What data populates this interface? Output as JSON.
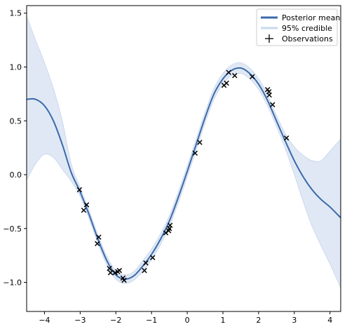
{
  "chart_data": {
    "type": "line",
    "xlim": [
      -4.5,
      4.3
    ],
    "ylim": [
      -1.27,
      1.57
    ],
    "x_ticks": [
      -4,
      -3,
      -2,
      -1,
      0,
      1,
      2,
      3,
      4
    ],
    "x_tick_labels": [
      "−4",
      "−3",
      "−2",
      "−1",
      "0",
      "1",
      "2",
      "3",
      "4"
    ],
    "y_ticks": [
      -1.0,
      -0.5,
      0.0,
      0.5,
      1.0,
      1.5
    ],
    "y_tick_labels": [
      "−1.0",
      "−0.5",
      "0.0",
      "0.5",
      "1.0",
      "1.5"
    ],
    "grid": false,
    "legend": {
      "position": "top-right",
      "entries": [
        "Posterior mean",
        "95% credible",
        "Observations"
      ]
    },
    "colors": {
      "mean": "#3a6aaa",
      "band": "#dbe4f3",
      "band_legend": "#c9d8ee",
      "observations": "#000000"
    },
    "series": [
      {
        "name": "Posterior mean",
        "x": [
          -4.5,
          -4.25,
          -4.0,
          -3.75,
          -3.5,
          -3.25,
          -3.0,
          -2.75,
          -2.5,
          -2.25,
          -2.0,
          -1.75,
          -1.5,
          -1.25,
          -1.0,
          -0.75,
          -0.5,
          -0.25,
          0.0,
          0.25,
          0.5,
          0.75,
          1.0,
          1.25,
          1.5,
          1.75,
          2.0,
          2.25,
          2.5,
          2.75,
          3.0,
          3.25,
          3.5,
          3.75,
          4.0,
          4.3
        ],
        "y": [
          0.7,
          0.7,
          0.64,
          0.5,
          0.28,
          0.02,
          -0.16,
          -0.37,
          -0.6,
          -0.8,
          -0.93,
          -0.97,
          -0.94,
          -0.85,
          -0.74,
          -0.6,
          -0.43,
          -0.21,
          0.03,
          0.28,
          0.53,
          0.75,
          0.89,
          0.97,
          0.99,
          0.94,
          0.84,
          0.69,
          0.5,
          0.31,
          0.13,
          -0.02,
          -0.14,
          -0.23,
          -0.3,
          -0.4
        ]
      },
      {
        "name": "95% credible",
        "x": [
          -4.5,
          -4.25,
          -4.0,
          -3.75,
          -3.5,
          -3.25,
          -3.0,
          -2.75,
          -2.5,
          -2.25,
          -2.0,
          -1.75,
          -1.5,
          -1.25,
          -1.0,
          -0.75,
          -0.5,
          -0.25,
          0.0,
          0.25,
          0.5,
          0.75,
          1.0,
          1.25,
          1.5,
          1.75,
          2.0,
          2.25,
          2.5,
          2.75,
          3.0,
          3.25,
          3.5,
          3.75,
          4.0,
          4.3
        ],
        "lower": [
          -0.05,
          0.1,
          0.19,
          0.16,
          0.05,
          -0.06,
          -0.2,
          -0.41,
          -0.64,
          -0.84,
          -0.97,
          -1.01,
          -0.98,
          -0.9,
          -0.79,
          -0.65,
          -0.48,
          -0.26,
          -0.02,
          0.23,
          0.48,
          0.7,
          0.84,
          0.92,
          0.94,
          0.89,
          0.79,
          0.64,
          0.45,
          0.24,
          0.0,
          -0.25,
          -0.48,
          -0.66,
          -0.83,
          -1.05
        ],
        "upper": [
          1.47,
          1.25,
          1.04,
          0.8,
          0.5,
          0.1,
          -0.12,
          -0.33,
          -0.56,
          -0.76,
          -0.89,
          -0.93,
          -0.9,
          -0.8,
          -0.69,
          -0.55,
          -0.38,
          -0.16,
          0.08,
          0.33,
          0.58,
          0.8,
          0.94,
          1.02,
          1.04,
          0.99,
          0.89,
          0.74,
          0.55,
          0.38,
          0.26,
          0.18,
          0.13,
          0.13,
          0.22,
          0.33
        ]
      },
      {
        "name": "Observations",
        "type": "scatter",
        "x": [
          -3.02,
          -2.9,
          -2.82,
          -2.52,
          -2.48,
          -2.18,
          -2.15,
          -2.02,
          -1.95,
          -1.9,
          -1.8,
          -1.77,
          -1.2,
          -1.16,
          -0.97,
          -0.6,
          -0.52,
          -0.5,
          -0.48,
          0.22,
          0.35,
          1.03,
          1.1,
          1.16,
          1.33,
          1.82,
          2.25,
          2.29,
          2.3,
          2.39,
          2.78
        ],
        "y": [
          -0.14,
          -0.33,
          -0.28,
          -0.64,
          -0.58,
          -0.87,
          -0.91,
          -0.91,
          -0.9,
          -0.89,
          -0.96,
          -0.98,
          -0.89,
          -0.82,
          -0.77,
          -0.54,
          -0.52,
          -0.5,
          -0.47,
          0.2,
          0.3,
          0.83,
          0.85,
          0.95,
          0.92,
          0.91,
          0.79,
          0.77,
          0.74,
          0.65,
          0.34
        ]
      }
    ]
  }
}
